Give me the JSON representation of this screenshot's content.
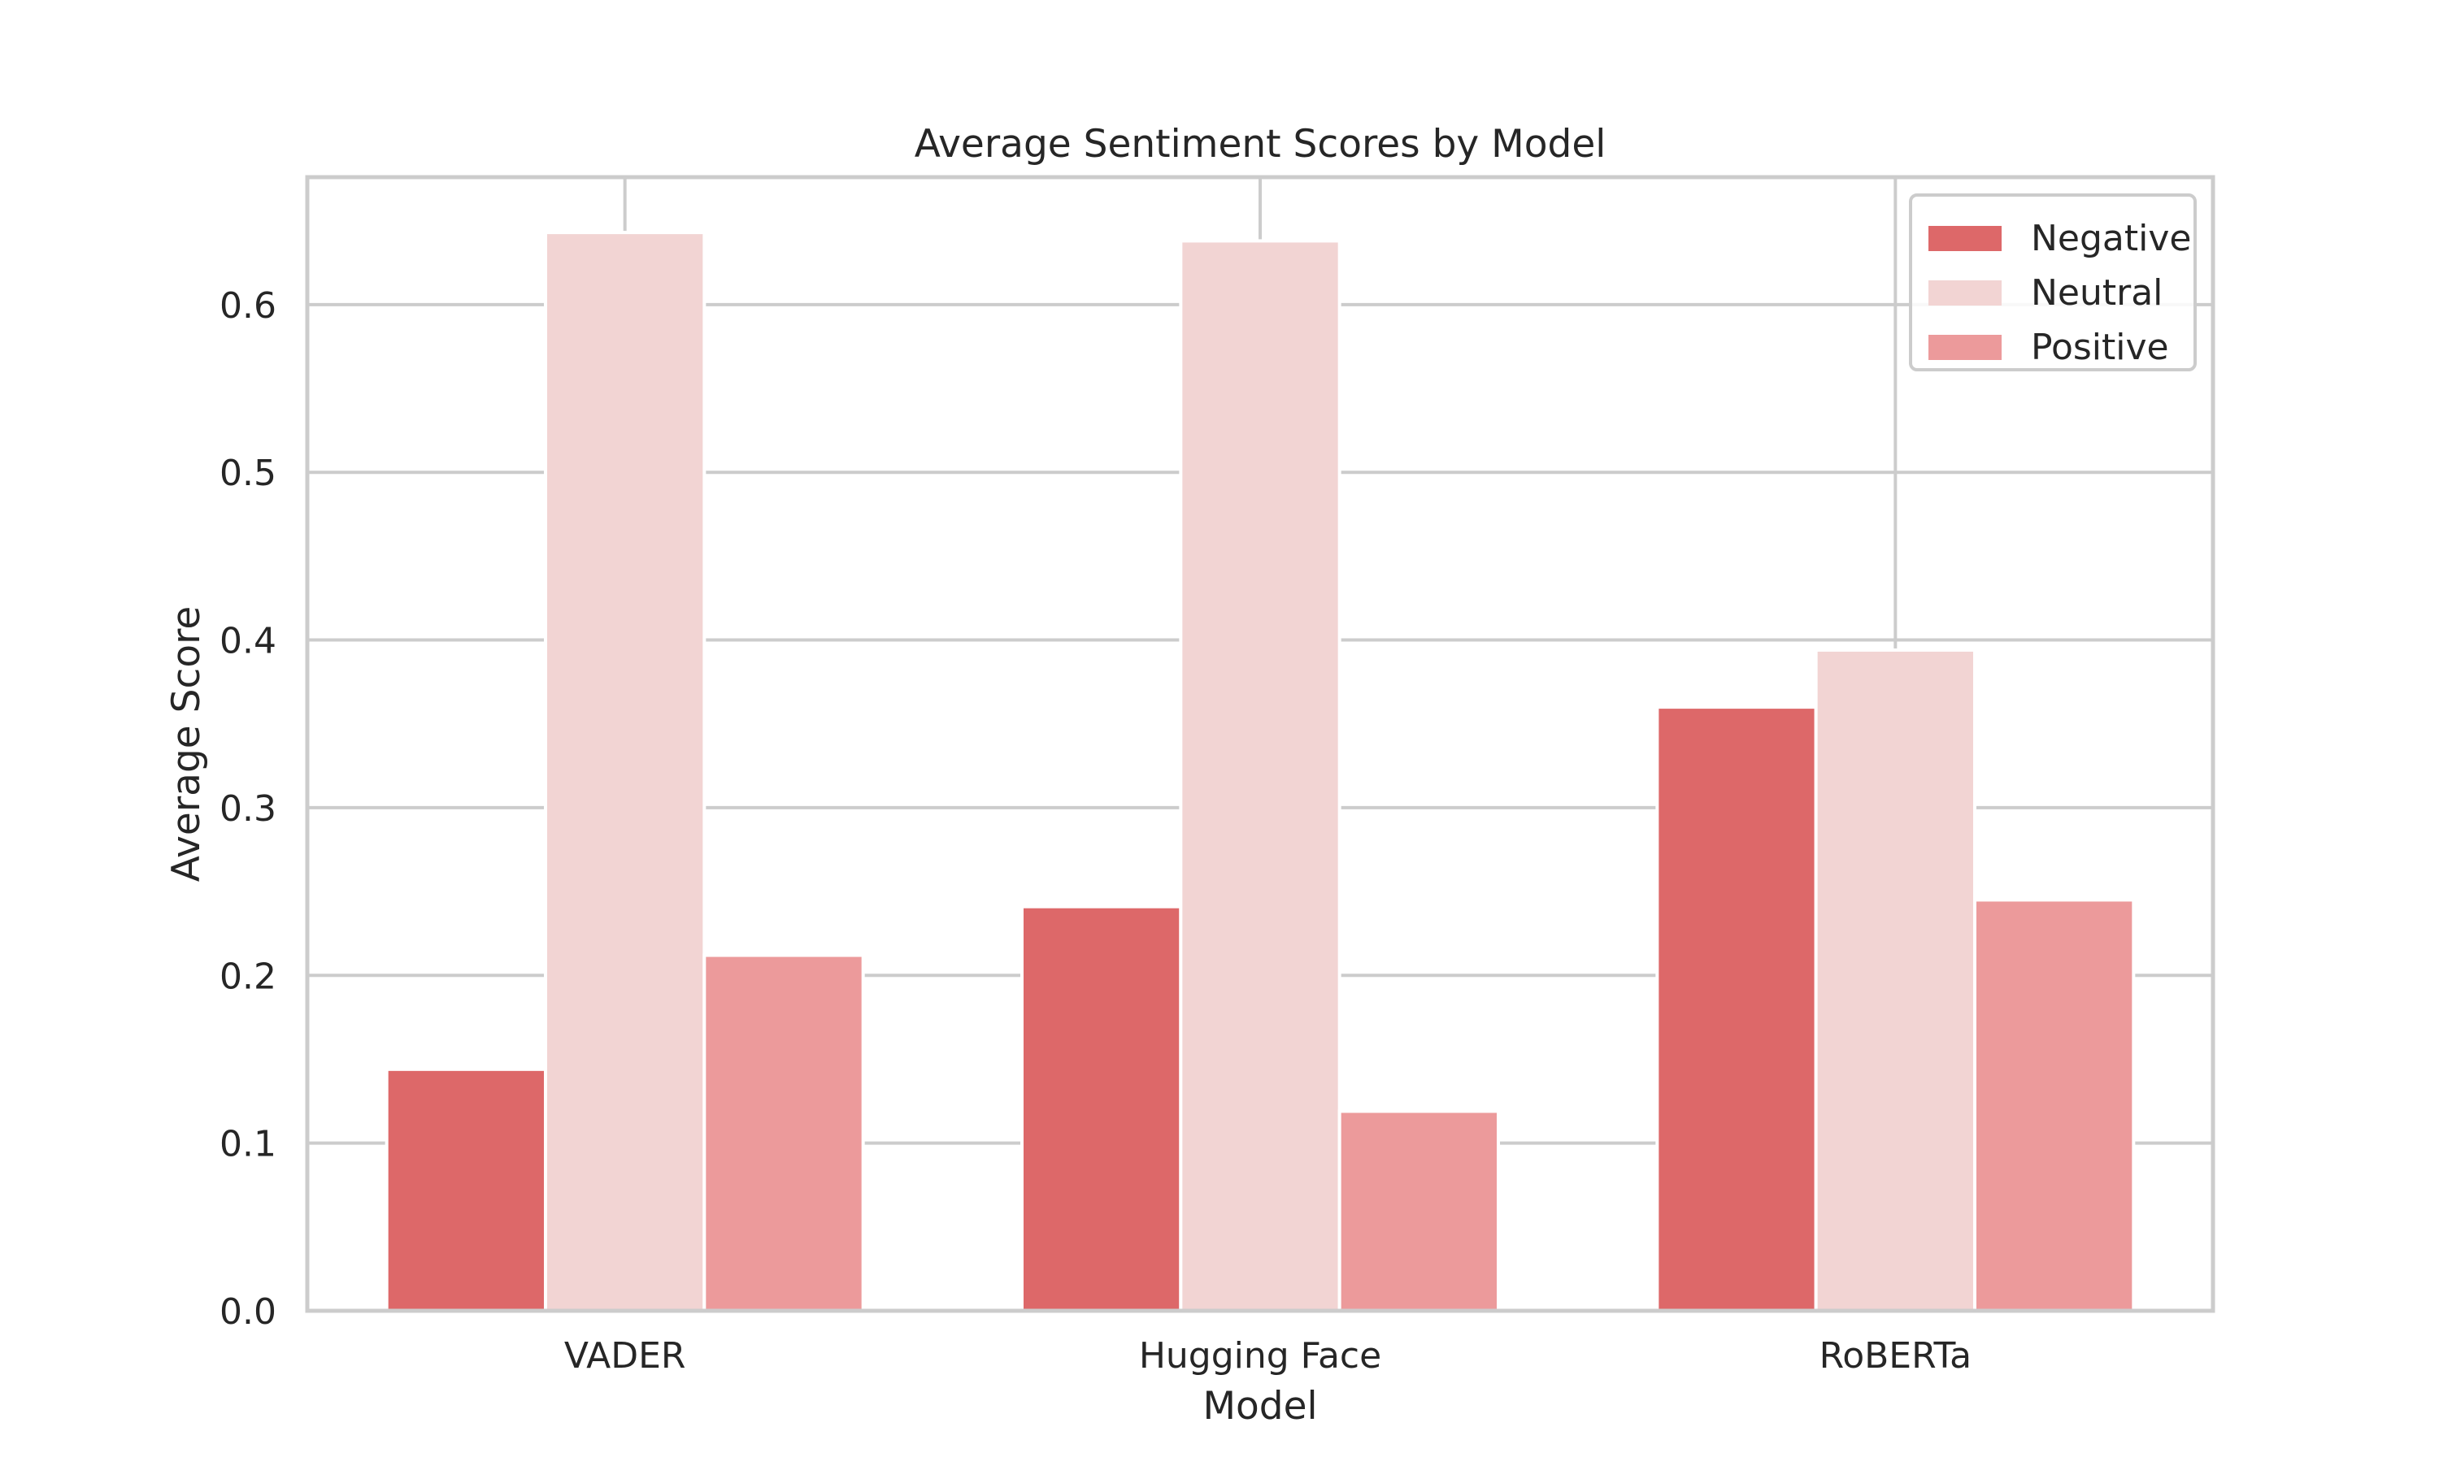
{
  "chart_data": {
    "type": "bar",
    "title": "Average Sentiment Scores by Model",
    "xlabel": "Model",
    "ylabel": "Average Score",
    "categories": [
      "VADER",
      "Hugging Face",
      "RoBERTa"
    ],
    "series": [
      {
        "name": "Negative",
        "color": "#dd6869",
        "values": [
          0.144,
          0.241,
          0.36
        ]
      },
      {
        "name": "Neutral",
        "color": "#f2d4d3",
        "values": [
          0.643,
          0.638,
          0.394
        ]
      },
      {
        "name": "Positive",
        "color": "#ec9a9b",
        "values": [
          0.212,
          0.119,
          0.245
        ]
      }
    ],
    "ylim": [
      0,
      0.676
    ],
    "yticks": [
      0.0,
      0.1,
      0.2,
      0.3,
      0.4,
      0.5,
      0.6
    ],
    "ytick_labels": [
      "0.0",
      "0.1",
      "0.2",
      "0.3",
      "0.4",
      "0.5",
      "0.6"
    ],
    "grid": true,
    "legend_position": "upper right"
  }
}
